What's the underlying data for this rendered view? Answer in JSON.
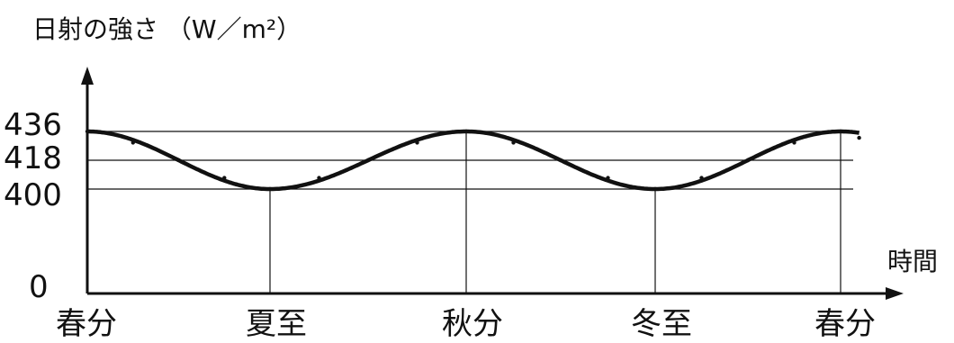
{
  "chart_data": {
    "type": "line",
    "ylabel": "日射の強さ （W／m²）",
    "xlabel": "時間",
    "y_ticks": [
      "436",
      "418",
      "400",
      "0"
    ],
    "y_tick_values": [
      436,
      418,
      400,
      0
    ],
    "categories": [
      "春分",
      "夏至",
      "秋分",
      "冬至",
      "春分"
    ],
    "series": [
      {
        "x": [
          0,
          0.25,
          0.5,
          0.75,
          1,
          1.25,
          1.5,
          1.75,
          2,
          2.25,
          2.5,
          2.75,
          3,
          3.25,
          3.5,
          3.75,
          4,
          4.1
        ],
        "values": [
          436,
          429,
          418,
          407,
          400,
          407,
          418,
          429,
          436,
          429,
          418,
          407,
          400,
          407,
          418,
          429,
          436,
          432
        ]
      }
    ],
    "grid": "horizontal reference lines at 436, 418, 400; vertical drop lines at 夏至, 秋分, 冬至, 春分",
    "legend": "none"
  }
}
